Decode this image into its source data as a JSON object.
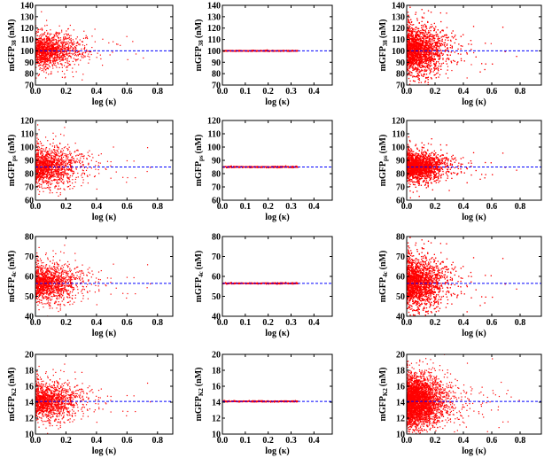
{
  "colors": {
    "points": "#ff0000",
    "reference_line": "#0000ff",
    "axes": "#000000"
  },
  "chart_data": [
    {
      "type": "scatter",
      "panel": "r1c1",
      "ylabel": "mGFP",
      "ylabel_sub": "38",
      "ylabel_unit": "(nM)",
      "xlabel": "log (κ)",
      "xlim": [
        0,
        0.9
      ],
      "ylim": [
        70,
        140
      ],
      "xticks": [
        "0.0",
        "0.2",
        "0.4",
        "0.6",
        "0.8"
      ],
      "yticks": [
        "70",
        "80",
        "90",
        "100",
        "110",
        "120",
        "130",
        "140"
      ],
      "reference_y": 100,
      "n_points": 1400,
      "cloud": {
        "y_center": 100,
        "y_spread": 7,
        "x_spread": 0.13,
        "x_max": 0.85
      },
      "grid": false
    },
    {
      "type": "scatter",
      "panel": "r1c2",
      "ylabel": "mGFP",
      "ylabel_sub": "38",
      "ylabel_unit": "(nM)",
      "xlabel": "log (κ)",
      "xlim": [
        0,
        0.48
      ],
      "ylim": [
        70,
        140
      ],
      "xticks": [
        "0.0",
        "0.1",
        "0.2",
        "0.3",
        "0.4"
      ],
      "yticks": [
        "70",
        "80",
        "90",
        "100",
        "110",
        "120",
        "130",
        "140"
      ],
      "reference_y": 100,
      "n_points": 500,
      "cloud": {
        "y_center": 100,
        "y_spread": 0.25,
        "x_spread": 0,
        "x_max": 0.33
      },
      "grid": false
    },
    {
      "type": "scatter",
      "panel": "r1c3",
      "ylabel": "mGFP",
      "ylabel_sub": "38",
      "ylabel_unit": "(nM)",
      "xlabel": "log (κ)",
      "xlim": [
        0,
        0.95
      ],
      "ylim": [
        70,
        140
      ],
      "xticks": [
        "0.0",
        "0.2",
        "0.4",
        "0.6",
        "0.8"
      ],
      "yticks": [
        "70",
        "80",
        "90",
        "100",
        "110",
        "120",
        "130",
        "140"
      ],
      "reference_y": 100,
      "n_points": 3500,
      "cloud": {
        "y_center": 100,
        "y_spread": 10,
        "x_spread": 0.12,
        "x_max": 0.9
      },
      "grid": false
    },
    {
      "type": "scatter",
      "panel": "r2c1",
      "ylabel": "mGFP",
      "ylabel_sub": "ps",
      "ylabel_unit": "(nM)",
      "xlabel": "log (κ)",
      "xlim": [
        0,
        0.9
      ],
      "ylim": [
        60,
        120
      ],
      "xticks": [
        "0.0",
        "0.2",
        "0.4",
        "0.6",
        "0.8"
      ],
      "yticks": [
        "60",
        "70",
        "80",
        "90",
        "100",
        "110",
        "120"
      ],
      "reference_y": 85,
      "n_points": 1400,
      "cloud": {
        "y_center": 85,
        "y_spread": 7,
        "x_spread": 0.13,
        "x_max": 0.85
      },
      "grid": false
    },
    {
      "type": "scatter",
      "panel": "r2c2",
      "ylabel": "mGFP",
      "ylabel_sub": "ps",
      "ylabel_unit": "(nM)",
      "xlabel": "log (κ)",
      "xlim": [
        0,
        0.48
      ],
      "ylim": [
        60,
        120
      ],
      "xticks": [
        "0.0",
        "0.1",
        "0.2",
        "0.3",
        "0.4"
      ],
      "yticks": [
        "60",
        "70",
        "80",
        "90",
        "100",
        "110",
        "120"
      ],
      "reference_y": 85,
      "n_points": 500,
      "cloud": {
        "y_center": 85,
        "y_spread": 0.25,
        "x_spread": 0,
        "x_max": 0.33
      },
      "grid": false
    },
    {
      "type": "scatter",
      "panel": "r2c3",
      "ylabel": "mGFP",
      "ylabel_sub": "ps",
      "ylabel_unit": "(nM)",
      "xlabel": "log (κ)",
      "xlim": [
        0,
        0.95
      ],
      "ylim": [
        60,
        120
      ],
      "xticks": [
        "0.0",
        "0.2",
        "0.4",
        "0.6",
        "0.8"
      ],
      "yticks": [
        "60",
        "70",
        "80",
        "90",
        "100",
        "110",
        "120"
      ],
      "reference_y": 85,
      "n_points": 3500,
      "cloud": {
        "y_center": 85,
        "y_spread": 5,
        "x_spread": 0.12,
        "x_max": 0.9
      },
      "grid": false
    },
    {
      "type": "scatter",
      "panel": "r3c1",
      "ylabel": "mGFP",
      "ylabel_sub": "4c",
      "ylabel_unit": "(nM)",
      "xlabel": "log (κ)",
      "xlim": [
        0,
        0.9
      ],
      "ylim": [
        40,
        80
      ],
      "xticks": [
        "0.0",
        "0.2",
        "0.4",
        "0.6",
        "0.8"
      ],
      "yticks": [
        "40",
        "50",
        "60",
        "70",
        "80"
      ],
      "reference_y": 56.5,
      "n_points": 1400,
      "cloud": {
        "y_center": 56.5,
        "y_spread": 4.5,
        "x_spread": 0.13,
        "x_max": 0.85
      },
      "grid": false
    },
    {
      "type": "scatter",
      "panel": "r3c2",
      "ylabel": "mGFP",
      "ylabel_sub": "4c",
      "ylabel_unit": "(nM)",
      "xlabel": "log (κ)",
      "xlim": [
        0,
        0.48
      ],
      "ylim": [
        40,
        80
      ],
      "xticks": [
        "0.0",
        "0.1",
        "0.2",
        "0.3",
        "0.4"
      ],
      "yticks": [
        "40",
        "50",
        "60",
        "70",
        "80"
      ],
      "reference_y": 56.5,
      "n_points": 500,
      "cloud": {
        "y_center": 56.5,
        "y_spread": 0.15,
        "x_spread": 0,
        "x_max": 0.33
      },
      "grid": false
    },
    {
      "type": "scatter",
      "panel": "r3c3",
      "ylabel": "mGFP",
      "ylabel_sub": "4c",
      "ylabel_unit": "(nM)",
      "xlabel": "log (κ)",
      "xlim": [
        0,
        0.95
      ],
      "ylim": [
        40,
        80
      ],
      "xticks": [
        "0.0",
        "0.2",
        "0.4",
        "0.6",
        "0.8"
      ],
      "yticks": [
        "40",
        "50",
        "60",
        "70",
        "80"
      ],
      "reference_y": 56.5,
      "n_points": 3500,
      "cloud": {
        "y_center": 56.5,
        "y_spread": 6,
        "x_spread": 0.12,
        "x_max": 0.9
      },
      "grid": false
    },
    {
      "type": "scatter",
      "panel": "r4c1",
      "ylabel": "mGFP",
      "ylabel_sub": "K2",
      "ylabel_unit": "(nM)",
      "xlabel": "log (κ)",
      "xlim": [
        0,
        0.9
      ],
      "ylim": [
        10,
        20
      ],
      "xticks": [
        "0.0",
        "0.2",
        "0.4",
        "0.6",
        "0.8"
      ],
      "yticks": [
        "10",
        "12",
        "14",
        "16",
        "18",
        "20"
      ],
      "reference_y": 14.1,
      "n_points": 1400,
      "cloud": {
        "y_center": 14.1,
        "y_spread": 1.1,
        "x_spread": 0.13,
        "x_max": 0.85
      },
      "grid": false
    },
    {
      "type": "scatter",
      "panel": "r4c2",
      "ylabel": "mGFP",
      "ylabel_sub": "K2",
      "ylabel_unit": "(nM)",
      "xlabel": "log (κ)",
      "xlim": [
        0,
        0.48
      ],
      "ylim": [
        10,
        20
      ],
      "xticks": [
        "0.0",
        "0.1",
        "0.2",
        "0.3",
        "0.4"
      ],
      "yticks": [
        "10",
        "12",
        "14",
        "16",
        "18",
        "20"
      ],
      "reference_y": 14.1,
      "n_points": 500,
      "cloud": {
        "y_center": 14.1,
        "y_spread": 0.04,
        "x_spread": 0,
        "x_max": 0.33
      },
      "grid": false
    },
    {
      "type": "scatter",
      "panel": "r4c3",
      "ylabel": "mGFP",
      "ylabel_sub": "K2",
      "ylabel_unit": "(nM)",
      "xlabel": "log (κ)",
      "xlim": [
        0,
        0.95
      ],
      "ylim": [
        10,
        20
      ],
      "xticks": [
        "0.0",
        "0.2",
        "0.4",
        "0.6",
        "0.8"
      ],
      "yticks": [
        "10",
        "12",
        "14",
        "16",
        "18",
        "20"
      ],
      "reference_y": 14.1,
      "n_points": 3500,
      "cloud": {
        "y_center": 14.1,
        "y_spread": 1.5,
        "x_spread": 0.12,
        "x_max": 0.9
      },
      "grid": false
    }
  ]
}
